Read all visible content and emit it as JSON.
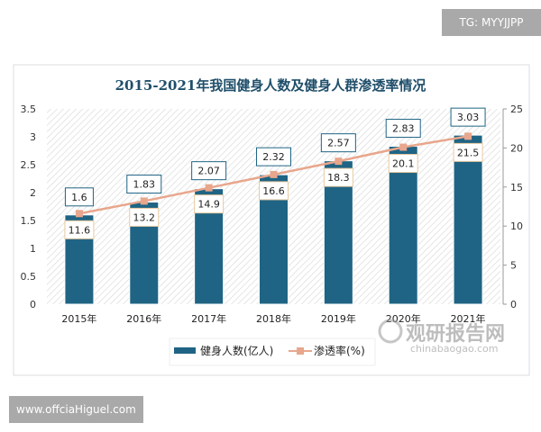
{
  "watermark_top": "TG: MYYJJPP",
  "watermark_bottom": "www.offciaHiguel.com",
  "logo": {
    "name": "观研报告网",
    "url": "chinabaogao.com"
  },
  "colors": {
    "bar": "#1f6484",
    "line": "#e8a68c",
    "title": "#1f4e6a"
  },
  "chart_data": {
    "type": "bar",
    "title": "2015-2021年我国健身人数及健身人群渗透率情况",
    "categories": [
      "2015年",
      "2016年",
      "2017年",
      "2018年",
      "2019年",
      "2020年",
      "2021年"
    ],
    "series": [
      {
        "name": "健身人数(亿人)",
        "type": "bar",
        "axis": "left",
        "values": [
          1.6,
          1.83,
          2.07,
          2.32,
          2.57,
          2.83,
          3.03
        ]
      },
      {
        "name": "渗透率(%)",
        "type": "line",
        "axis": "right",
        "values": [
          11.6,
          13.2,
          14.9,
          16.6,
          18.3,
          20.1,
          21.5
        ]
      }
    ],
    "left_axis": {
      "ylim": [
        0,
        3.5
      ],
      "ticks": [
        "0",
        "0.5",
        "1",
        "1.5",
        "2",
        "2.5",
        "3",
        "3.5"
      ]
    },
    "right_axis": {
      "ylim": [
        0,
        25
      ],
      "ticks": [
        "0",
        "5",
        "10",
        "15",
        "20",
        "25"
      ]
    },
    "legend": "bottom"
  }
}
